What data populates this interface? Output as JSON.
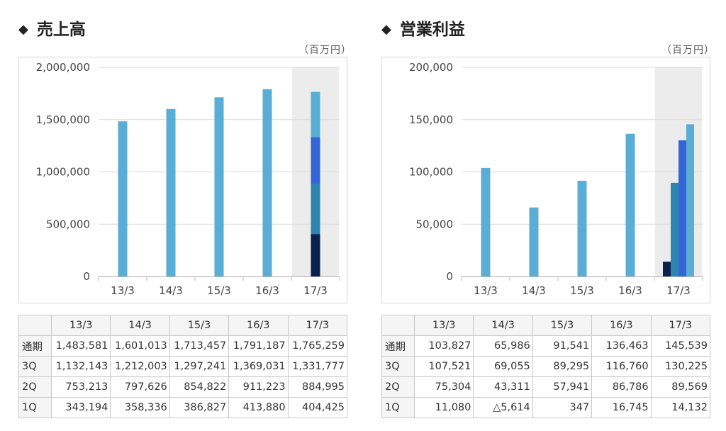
{
  "chart_data": [
    {
      "type": "bar",
      "title": "売上高",
      "unit": "（百万円）",
      "categories": [
        "13/3",
        "14/3",
        "15/3",
        "16/3",
        "17/3"
      ],
      "yticks": [
        "0",
        "500,000",
        "1,000,000",
        "1,500,000",
        "2,000,000"
      ],
      "ylim": [
        0,
        2000000
      ],
      "highlight_category": "17/3",
      "bars": [
        {
          "category": "13/3",
          "value": 1483581
        },
        {
          "category": "14/3",
          "value": 1601013
        },
        {
          "category": "15/3",
          "value": 1713457
        },
        {
          "category": "16/3",
          "value": 1791187
        },
        {
          "category": "17/3",
          "stack": [
            {
              "name": "1Q",
              "value": 404425,
              "color": "#0b2150"
            },
            {
              "name": "2Q",
              "value": 884995,
              "color": "#2e86b0"
            },
            {
              "name": "3Q",
              "value": 1331777,
              "color": "#3565d6"
            },
            {
              "name": "通期",
              "value": 1765259,
              "color": "#5aaed6"
            }
          ]
        }
      ],
      "table": {
        "columns": [
          "",
          "13/3",
          "14/3",
          "15/3",
          "16/3",
          "17/3"
        ],
        "rows": [
          {
            "label": "通期",
            "values": [
              "1,483,581",
              "1,601,013",
              "1,713,457",
              "1,791,187",
              "1,765,259"
            ]
          },
          {
            "label": "3Q",
            "values": [
              "1,132,143",
              "1,212,003",
              "1,297,241",
              "1,369,031",
              "1,331,777"
            ]
          },
          {
            "label": "2Q",
            "values": [
              "753,213",
              "797,626",
              "854,822",
              "911,223",
              "884,995"
            ]
          },
          {
            "label": "1Q",
            "values": [
              "343,194",
              "358,336",
              "386,827",
              "413,880",
              "404,425"
            ]
          }
        ]
      }
    },
    {
      "type": "bar",
      "title": "営業利益",
      "unit": "（百万円）",
      "categories": [
        "13/3",
        "14/3",
        "15/3",
        "16/3",
        "17/3"
      ],
      "yticks": [
        "0",
        "50,000",
        "100,000",
        "150,000",
        "200,000"
      ],
      "ylim": [
        0,
        200000
      ],
      "highlight_category": "17/3",
      "bars": [
        {
          "category": "13/3",
          "value": 103827
        },
        {
          "category": "14/3",
          "value": 65986
        },
        {
          "category": "15/3",
          "value": 91541
        },
        {
          "category": "16/3",
          "value": 136463
        },
        {
          "category": "17/3",
          "group": [
            {
              "name": "1Q",
              "value": 14132,
              "color": "#0b2150"
            },
            {
              "name": "2Q",
              "value": 89569,
              "color": "#2e86b0"
            },
            {
              "name": "3Q",
              "value": 130225,
              "color": "#3565d6"
            },
            {
              "name": "通期",
              "value": 145539,
              "color": "#5aaed6"
            }
          ]
        }
      ],
      "table": {
        "columns": [
          "",
          "13/3",
          "14/3",
          "15/3",
          "16/3",
          "17/3"
        ],
        "rows": [
          {
            "label": "通期",
            "values": [
              "103,827",
              "65,986",
              "91,541",
              "136,463",
              "145,539"
            ]
          },
          {
            "label": "3Q",
            "values": [
              "107,521",
              "69,055",
              "89,295",
              "116,760",
              "130,225"
            ]
          },
          {
            "label": "2Q",
            "values": [
              "75,304",
              "43,311",
              "57,941",
              "86,786",
              "89,569"
            ]
          },
          {
            "label": "1Q",
            "values": [
              "11,080",
              "△5,614",
              "347",
              "16,745",
              "14,132"
            ]
          }
        ]
      }
    }
  ],
  "colors": {
    "bar": "#5aaed6",
    "highlight_bg": "#ececec",
    "grid": "#d9d9d9",
    "axis_text": "#444444"
  }
}
